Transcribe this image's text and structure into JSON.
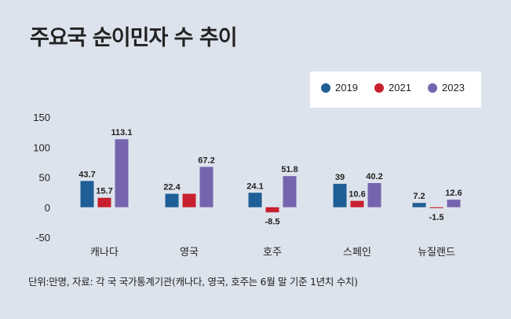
{
  "title": "주요국 순이민자 수 추이",
  "footnote": "단위:만명, 자료: 각 국 국가통계기관(캐나다, 영국, 호주는 6월 말 기준 1년치 수치)",
  "chart_data": {
    "type": "bar",
    "categories": [
      "캐나다",
      "영국",
      "호주",
      "스페인",
      "뉴질랜드"
    ],
    "series": [
      {
        "name": "2019",
        "color": "#1f5e96",
        "values": [
          43.7,
          22.4,
          24.1,
          39,
          7.2
        ]
      },
      {
        "name": "2021",
        "color": "#c8202e",
        "values": [
          15.7,
          22.4,
          -8.5,
          10.6,
          -1.5
        ]
      },
      {
        "name": "2023",
        "color": "#7764ae",
        "values": [
          113.1,
          67.2,
          51.8,
          40.2,
          12.6
        ]
      }
    ],
    "data_labels": [
      [
        "43.7",
        "15.7",
        "113.1"
      ],
      [
        "22.4",
        "",
        "67.2"
      ],
      [
        "24.1",
        "-8.5",
        "51.8"
      ],
      [
        "39",
        "10.6",
        "40.2"
      ],
      [
        "7.2",
        "-1.5",
        "12.6"
      ]
    ],
    "ylim": [
      -50,
      150
    ],
    "yticks": [
      150,
      100,
      50,
      0,
      -50
    ],
    "grid": false,
    "legend_position": "top-right"
  }
}
